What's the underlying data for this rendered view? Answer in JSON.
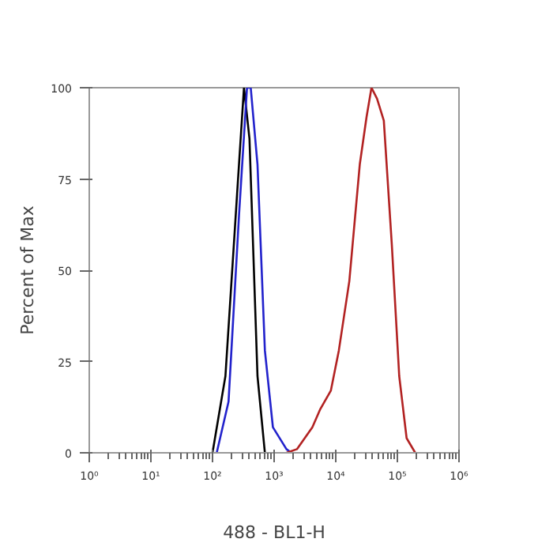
{
  "chart_data": {
    "type": "line",
    "xlabel": "488 - BL1-H",
    "ylabel": "Percent of Max",
    "log": "x",
    "xlim": [
      1,
      1000000
    ],
    "ylim": [
      0,
      100
    ],
    "xticks": [
      {
        "value": 1,
        "label": "10⁰"
      },
      {
        "value": 10,
        "label": "10¹"
      },
      {
        "value": 100,
        "label": "10²"
      },
      {
        "value": 1000,
        "label": "10³"
      },
      {
        "value": 10000,
        "label": "10⁴"
      },
      {
        "value": 100000,
        "label": "10⁵"
      },
      {
        "value": 1000000,
        "label": "10⁶"
      }
    ],
    "yticks": [
      0,
      25,
      50,
      75,
      100
    ],
    "grid": false,
    "marker": "none",
    "line_style": "solid",
    "series": [
      {
        "color": "#000000",
        "x": [
          100,
          162,
          269,
          324,
          398,
          537,
          708
        ],
        "values": [
          0,
          21,
          79,
          100,
          86,
          21,
          0
        ]
      },
      {
        "color": "#2222cc",
        "x": [
          117,
          182,
          269,
          363,
          417,
          537,
          708,
          955,
          1585,
          1905
        ],
        "values": [
          0,
          14,
          65,
          100,
          100,
          79,
          28,
          7,
          1,
          0
        ]
      },
      {
        "color": "#b22222",
        "x": [
          1585,
          2344,
          4169,
          5623,
          8318,
          11220,
          16600,
          24550,
          31620,
          38020,
          46770,
          60260,
          81280,
          107200,
          141300,
          195000
        ],
        "values": [
          0,
          1,
          7,
          12,
          17,
          28,
          47,
          79,
          92,
          100,
          97,
          91,
          57,
          21,
          4,
          0
        ]
      }
    ]
  }
}
